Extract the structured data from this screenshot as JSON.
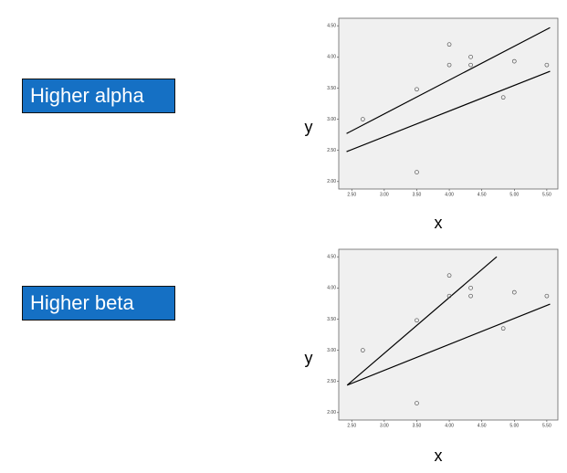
{
  "labels": [
    "Higher alpha",
    "Higher beta"
  ],
  "chart_data": [
    {
      "type": "scatter",
      "x_label": "x",
      "y_label": "y",
      "x": [
        2.67,
        3.5,
        3.5,
        4.0,
        4.0,
        4.33,
        4.33,
        4.83,
        5.0,
        5.5
      ],
      "values": [
        3.0,
        3.48,
        2.15,
        4.2,
        3.87,
        4.0,
        3.87,
        3.35,
        3.93,
        3.87
      ],
      "lines": [
        {
          "x": [
            2.42,
            5.55
          ],
          "y": [
            2.77,
            4.47
          ]
        },
        {
          "x": [
            2.42,
            5.55
          ],
          "y": [
            2.48,
            3.77
          ]
        }
      ],
      "xlim": [
        2.3,
        5.67
      ],
      "ylim": [
        1.88,
        4.62
      ],
      "xticks": [
        {
          "value": 2.5,
          "label": "2.50"
        },
        {
          "value": 3,
          "label": "3.00"
        },
        {
          "value": 3.5,
          "label": "3.50"
        },
        {
          "value": 4,
          "label": "4.00"
        },
        {
          "value": 4.5,
          "label": "4.50"
        },
        {
          "value": 5,
          "label": "5.00"
        },
        {
          "value": 5.5,
          "label": "5.50"
        }
      ],
      "yticks": [
        {
          "value": 2,
          "label": "2.00"
        },
        {
          "value": 2.5,
          "label": "2.50"
        },
        {
          "value": 3,
          "label": "3.00"
        },
        {
          "value": 3.5,
          "label": "3.50"
        },
        {
          "value": 4,
          "label": "4.00"
        },
        {
          "value": 4.5,
          "label": "4.50"
        }
      ]
    },
    {
      "type": "scatter",
      "x_label": "x",
      "y_label": "y",
      "x": [
        2.67,
        3.5,
        3.5,
        4.0,
        4.0,
        4.33,
        4.33,
        4.83,
        5.0,
        5.5
      ],
      "values": [
        3.0,
        3.48,
        2.15,
        4.2,
        3.87,
        4.0,
        3.87,
        3.35,
        3.93,
        3.87
      ],
      "lines": [
        {
          "x": [
            2.43,
            4.73
          ],
          "y": [
            2.44,
            4.5
          ]
        },
        {
          "x": [
            2.43,
            5.55
          ],
          "y": [
            2.44,
            3.74
          ]
        }
      ],
      "xlim": [
        2.3,
        5.67
      ],
      "ylim": [
        1.88,
        4.62
      ],
      "xticks": [
        {
          "value": 2.5,
          "label": "2.50"
        },
        {
          "value": 3,
          "label": "3.00"
        },
        {
          "value": 3.5,
          "label": "3.50"
        },
        {
          "value": 4,
          "label": "4.00"
        },
        {
          "value": 4.5,
          "label": "4.50"
        },
        {
          "value": 5,
          "label": "5.00"
        },
        {
          "value": 5.5,
          "label": "5.50"
        }
      ],
      "yticks": [
        {
          "value": 2,
          "label": "2.00"
        },
        {
          "value": 2.5,
          "label": "2.50"
        },
        {
          "value": 3,
          "label": "3.00"
        },
        {
          "value": 3.5,
          "label": "3.50"
        },
        {
          "value": 4,
          "label": "4.00"
        },
        {
          "value": 4.5,
          "label": "4.50"
        }
      ]
    }
  ]
}
